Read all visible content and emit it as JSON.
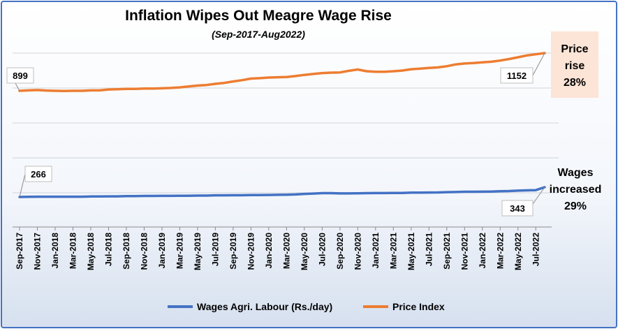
{
  "chart_data": {
    "type": "line",
    "title": "Inflation Wipes Out Meagre Wage Rise",
    "subtitle": "(Sep-2017-Aug2022)",
    "x": [
      "Sep-2017",
      "Oct-2017",
      "Nov-2017",
      "Dec-2017",
      "Jan-2018",
      "Feb-2018",
      "Mar-2018",
      "Apr-2018",
      "May-2018",
      "Jun-2018",
      "Jul-2018",
      "Aug-2018",
      "Sep-2018",
      "Oct-2018",
      "Nov-2018",
      "Dec-2018",
      "Jan-2019",
      "Feb-2019",
      "Mar-2019",
      "Apr-2019",
      "May-2019",
      "Jun-2019",
      "Jul-2019",
      "Aug-2019",
      "Sep-2019",
      "Oct-2019",
      "Nov-2019",
      "Dec-2019",
      "Jan-2020",
      "Feb-2020",
      "Mar-2020",
      "Apr-2020",
      "May-2020",
      "Jun-2020",
      "Jul-2020",
      "Aug-2020",
      "Sep-2020",
      "Oct-2020",
      "Nov-2020",
      "Dec-2020",
      "Jan-2021",
      "Feb-2021",
      "Mar-2021",
      "Apr-2021",
      "May-2021",
      "Jun-2021",
      "Jul-2021",
      "Aug-2021",
      "Sep-2021",
      "Oct-2021",
      "Nov-2021",
      "Dec-2021",
      "Jan-2022",
      "Feb-2022",
      "Mar-2022",
      "Apr-2022",
      "May-2022",
      "Jun-2022",
      "Jul-2022",
      "Aug-2022"
    ],
    "tick_labels": [
      "Sep-2017",
      "Nov-2017",
      "Jan-2018",
      "Mar-2018",
      "May-2018",
      "Jul-2018",
      "Sep-2018",
      "Nov-2018",
      "Jan-2019",
      "Mar-2019",
      "May-2019",
      "Jul-2019",
      "Sep-2019",
      "Nov-2019",
      "Jan-2020",
      "Mar-2020",
      "May-2020",
      "Jul-2020",
      "Sep-2020",
      "Nov-2020",
      "Jan-2021",
      "Mar-2021",
      "May-2021",
      "Jul-2021",
      "Sep-2021",
      "Nov-2021",
      "Jan-2022",
      "Mar-2022",
      "May-2022",
      "Jul-2022"
    ],
    "series": [
      {
        "name": "Wages Agri. Labour (Rs./day)",
        "color": "#4472c4",
        "values": [
          266,
          267,
          268,
          268,
          268,
          268,
          268,
          268,
          270,
          270,
          271,
          271,
          273,
          273,
          274,
          274,
          275,
          275,
          276,
          276,
          277,
          277,
          279,
          279,
          280,
          280,
          281,
          281,
          282,
          283,
          284,
          286,
          290,
          293,
          296,
          296,
          294,
          294,
          295,
          296,
          297,
          297,
          298,
          298,
          300,
          300,
          301,
          302,
          304,
          305,
          307,
          307,
          308,
          309,
          311,
          313,
          316,
          318,
          320,
          343
        ]
      },
      {
        "name": "Price Index",
        "color": "#ed7d31",
        "values": [
          899,
          902,
          904,
          901,
          899,
          898,
          899,
          899,
          902,
          902,
          908,
          910,
          912,
          912,
          914,
          914,
          916,
          918,
          922,
          928,
          934,
          938,
          946,
          952,
          962,
          970,
          981,
          984,
          988,
          990,
          992,
          998,
          1006,
          1012,
          1018,
          1021,
          1022,
          1033,
          1042,
          1030,
          1027,
          1027,
          1030,
          1035,
          1044,
          1048,
          1052,
          1056,
          1064,
          1076,
          1082,
          1085,
          1090,
          1094,
          1102,
          1112,
          1124,
          1136,
          1144,
          1152
        ]
      }
    ],
    "callouts": {
      "wages_start": "266",
      "wages_end": "343",
      "price_start": "899",
      "price_end": "1152"
    },
    "side_notes": {
      "price": [
        "Price",
        "rise",
        "28%"
      ],
      "wages": [
        "Wages",
        "increased",
        "29%"
      ]
    },
    "gridlines": true,
    "legend_position": "bottom"
  }
}
